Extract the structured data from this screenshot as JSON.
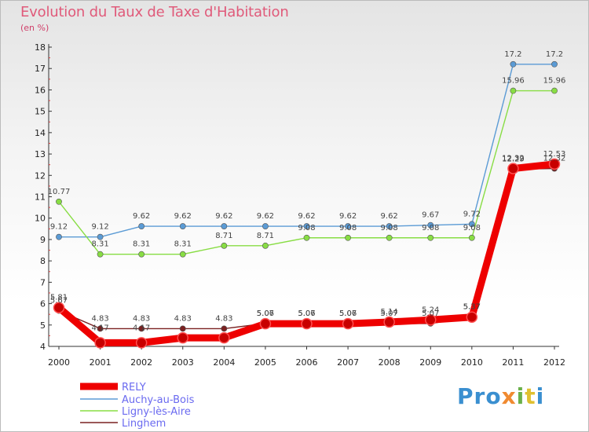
{
  "chart_data": {
    "type": "line",
    "title": "Evolution du Taux de Taxe d'Habitation",
    "unit_label": "(en %)",
    "x": [
      "2000",
      "2001",
      "2002",
      "2003",
      "2004",
      "2005",
      "2006",
      "2007",
      "2008",
      "2009",
      "2010",
      "2011",
      "2012"
    ],
    "ylim": [
      4,
      18
    ],
    "yticks": [
      4,
      5,
      6,
      7,
      8,
      9,
      10,
      11,
      12,
      13,
      14,
      15,
      16,
      17,
      18
    ],
    "grid": false,
    "legend_placement": "bottom-left",
    "series": [
      {
        "name": "RELY",
        "color": "#ee0000",
        "values": [
          5.81,
          4.17,
          4.17,
          4.4,
          4.4,
          5.06,
          5.06,
          5.06,
          5.14,
          5.24,
          5.37,
          12.32,
          12.53
        ],
        "labels": [
          "5.81",
          "4.17",
          "4.17",
          "",
          "",
          "5.06",
          "5.06",
          "5.06",
          "5.14",
          "5.24",
          "5.37",
          "12.32",
          "12.53"
        ]
      },
      {
        "name": "Auchy-au-Bois",
        "color": "#5b9bd5",
        "values": [
          9.12,
          9.12,
          9.62,
          9.62,
          9.62,
          9.62,
          9.62,
          9.62,
          9.62,
          9.67,
          9.72,
          17.2,
          17.2
        ],
        "labels": [
          "9.12",
          "9.12",
          "9.62",
          "9.62",
          "9.62",
          "9.62",
          "9.62",
          "9.62",
          "9.62",
          "9.67",
          "9.72",
          "17.2",
          "17.2"
        ]
      },
      {
        "name": "Ligny-lès-Aire",
        "color": "#88dd44",
        "values": [
          10.77,
          8.31,
          8.31,
          8.31,
          8.71,
          8.71,
          9.08,
          9.08,
          9.08,
          9.08,
          9.08,
          15.96,
          15.96
        ],
        "labels": [
          "10.77",
          "8.31",
          "8.31",
          "8.31",
          "8.71",
          "8.71",
          "9.08",
          "9.08",
          "9.08",
          "9.08",
          "9.08",
          "15.96",
          "15.96"
        ]
      },
      {
        "name": "Linghem",
        "color": "#7a2020",
        "values": [
          5.67,
          4.83,
          4.83,
          4.83,
          4.83,
          5.07,
          5.07,
          5.07,
          5.07,
          5.07,
          5.37,
          12.29,
          12.32
        ],
        "labels": [
          "5.67",
          "4.83",
          "4.83",
          "4.83",
          "4.83",
          "5.07",
          "5.07",
          "5.07",
          "5.07",
          "5.07",
          "5.37",
          "12.29",
          "12.32"
        ]
      }
    ]
  },
  "logo": {
    "p1": "Pro",
    "p2": "x",
    "p3": "i",
    "p4": "t",
    "p5": "i"
  }
}
